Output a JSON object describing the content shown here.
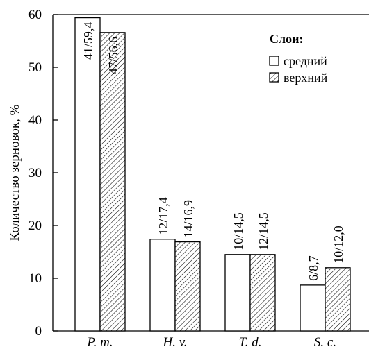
{
  "chart_data": {
    "type": "bar",
    "ylabel": "Количество зерновок, %",
    "ylim": [
      0,
      60
    ],
    "yticks": [
      "0",
      "10",
      "20",
      "30",
      "40",
      "50",
      "60"
    ],
    "categories": [
      "P. m.",
      "H. v.",
      "T. d.",
      "S. c."
    ],
    "series": [
      {
        "name": "средний",
        "pattern": "none",
        "values": [
          59.4,
          17.4,
          14.5,
          8.7
        ],
        "labels": [
          "41/59,4",
          "12/17,4",
          "10/14,5",
          "6/8,7"
        ]
      },
      {
        "name": "верхний",
        "pattern": "hatched",
        "values": [
          56.6,
          16.9,
          14.5,
          12.0
        ],
        "labels": [
          "47/56,6",
          "14/16,9",
          "12/14,5",
          "10/12,0"
        ]
      }
    ],
    "legend": {
      "title": "Слои:",
      "position": "top-right"
    },
    "grid": false
  },
  "colors": {
    "bar_stroke": "#000000",
    "bar_fill": "#ffffff",
    "hatch": "#000000"
  }
}
